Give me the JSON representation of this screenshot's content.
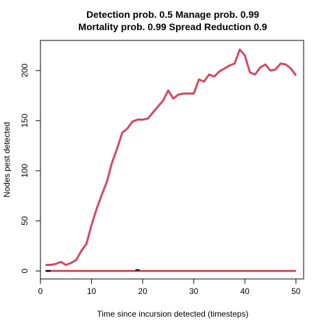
{
  "chart_data": {
    "type": "line",
    "title_line1": "Detection prob. 0.5 Manage prob. 0.99",
    "title_line2": "Mortality prob. 0.99 Spread Reduction 0.9",
    "xlabel": "Time since incursion detected (timesteps)",
    "ylabel": "Nodes pest detected",
    "xlim": [
      0,
      51.5
    ],
    "ylim": [
      -8,
      230
    ],
    "x_ticks": [
      0,
      10,
      20,
      30,
      40,
      50
    ],
    "y_ticks": [
      0,
      50,
      100,
      150,
      200
    ],
    "grid": false,
    "series": [
      {
        "color": "#d6485f",
        "x": [
          1,
          2,
          3,
          4,
          5,
          6,
          7,
          8,
          9,
          10,
          11,
          12,
          13,
          14,
          15,
          16,
          17,
          18,
          19,
          20,
          21,
          22,
          23,
          24,
          25,
          26,
          27,
          28,
          29,
          30,
          31,
          32,
          33,
          34,
          35,
          36,
          37,
          38,
          39,
          40,
          41,
          42,
          43,
          44,
          45,
          46,
          47,
          48,
          49,
          50
        ],
        "values": [
          6,
          6,
          7,
          9,
          6,
          8,
          11,
          20,
          27,
          46,
          62,
          76,
          89,
          108,
          122,
          138,
          142,
          149,
          151,
          151,
          152,
          158,
          164,
          170,
          180,
          172,
          176,
          177,
          177,
          177,
          191,
          189,
          196,
          194,
          199,
          202,
          205,
          207,
          221,
          215,
          198,
          196,
          203,
          206,
          200,
          201,
          207,
          206,
          202,
          195
        ]
      },
      {
        "color": "#d6485f",
        "x": [
          1,
          50
        ],
        "values": [
          0,
          0
        ]
      },
      {
        "color": "#000000",
        "x": [
          1,
          2
        ],
        "values": [
          0,
          0
        ]
      },
      {
        "color": "#000000",
        "x": [
          18.6,
          19.4
        ],
        "values": [
          1,
          1
        ]
      }
    ]
  }
}
